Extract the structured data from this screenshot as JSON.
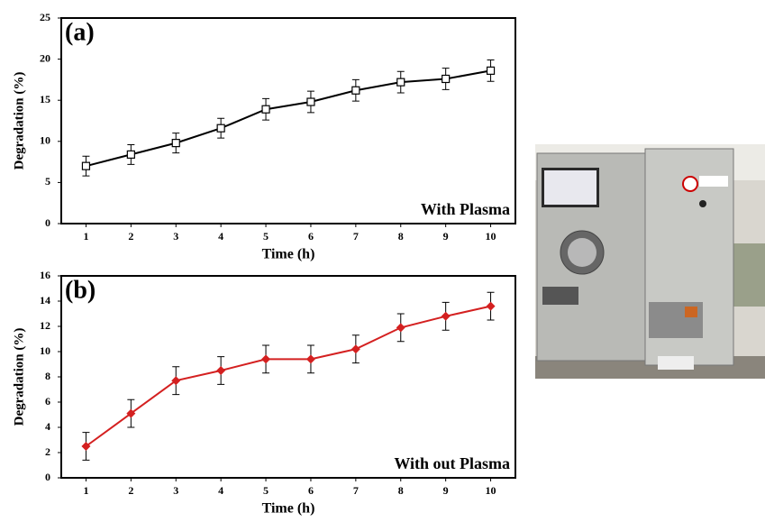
{
  "chart_data": [
    {
      "type": "line",
      "title": "(a)",
      "annotation": "With Plasma",
      "x_label": "Time (h)",
      "y_label": "Degradation (%)",
      "x": [
        1,
        2,
        3,
        4,
        5,
        6,
        7,
        8,
        9,
        10
      ],
      "values": [
        7.0,
        8.4,
        9.8,
        11.6,
        13.9,
        14.8,
        16.2,
        17.2,
        17.6,
        18.6
      ],
      "errors": [
        1.2,
        1.2,
        1.2,
        1.2,
        1.3,
        1.3,
        1.3,
        1.3,
        1.3,
        1.3
      ],
      "color": "#000000",
      "marker": "square",
      "xlim": [
        0.45,
        10.55
      ],
      "xticks": [
        1,
        2,
        3,
        4,
        5,
        6,
        7,
        8,
        9,
        10
      ],
      "ylim": [
        0,
        25
      ],
      "yticks": [
        0,
        5,
        10,
        15,
        20,
        25
      ]
    },
    {
      "type": "line",
      "title": "(b)",
      "annotation": "With out Plasma",
      "x_label": "Time (h)",
      "y_label": "Degradation (%)",
      "x": [
        1,
        2,
        3,
        4,
        5,
        6,
        7,
        8,
        9,
        10
      ],
      "values": [
        2.5,
        5.1,
        7.7,
        8.5,
        9.4,
        9.4,
        10.2,
        11.9,
        12.8,
        13.6
      ],
      "errors": [
        1.1,
        1.1,
        1.1,
        1.1,
        1.1,
        1.1,
        1.1,
        1.1,
        1.1,
        1.1
      ],
      "color": "#d42020",
      "marker": "diamond",
      "xlim": [
        0.45,
        10.55
      ],
      "xticks": [
        1,
        2,
        3,
        4,
        5,
        6,
        7,
        8,
        9,
        10
      ],
      "ylim": [
        0,
        16
      ],
      "yticks": [
        0,
        2,
        4,
        6,
        8,
        10,
        12,
        14,
        16
      ]
    }
  ]
}
